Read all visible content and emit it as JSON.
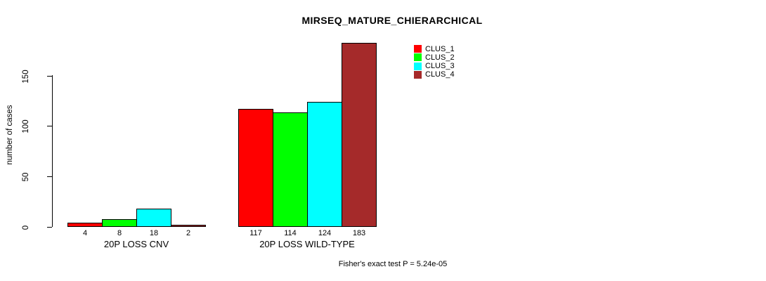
{
  "title": "MIRSEQ_MATURE_CHIERARCHICAL",
  "subtitle": "Fisher's exact test P = 5.24e-05",
  "chart_data": {
    "type": "bar",
    "title": "MIRSEQ_MATURE_CHIERARCHICAL",
    "xlabel": "",
    "ylabel": "number of cases",
    "ylim": [
      0,
      150
    ],
    "yticks": [
      0,
      50,
      100,
      150
    ],
    "grid": false,
    "legend_position": "top-right",
    "bar_value_labels": true,
    "categories": [
      "20P LOSS CNV",
      "20P LOSS WILD-TYPE"
    ],
    "series": [
      {
        "name": "CLUS_1",
        "color": "#FF0000",
        "values": [
          4,
          117
        ]
      },
      {
        "name": "CLUS_2",
        "color": "#00FF00",
        "values": [
          8,
          114
        ]
      },
      {
        "name": "CLUS_3",
        "color": "#00FFFF",
        "values": [
          18,
          124
        ]
      },
      {
        "name": "CLUS_4",
        "color": "#A52A2A",
        "values": [
          2,
          183
        ]
      }
    ],
    "annotation": "Fisher's exact test P = 5.24e-05"
  }
}
